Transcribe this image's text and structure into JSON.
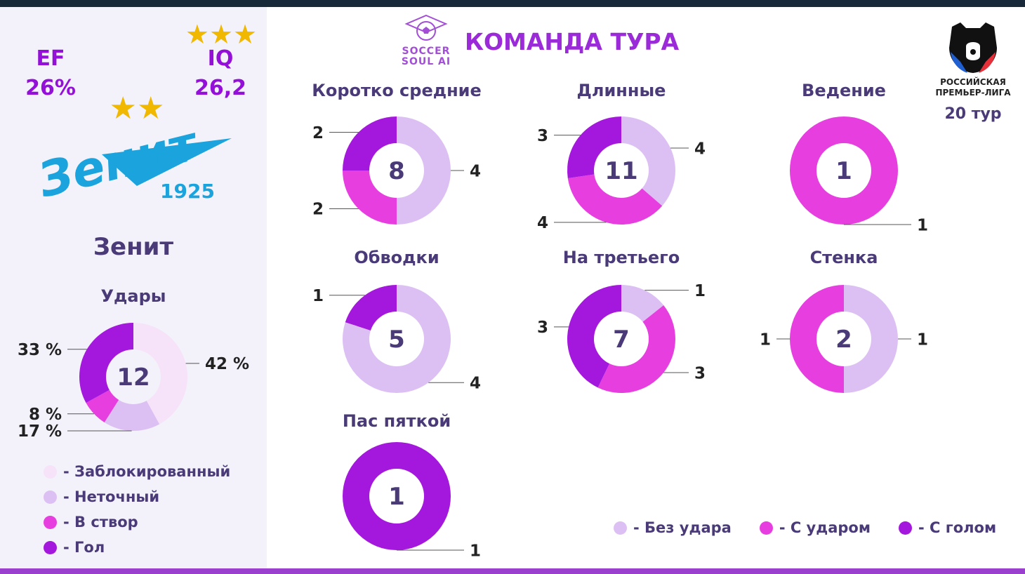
{
  "header": {
    "logo_text_line1": "SOCCER",
    "logo_text_line2": "SOUL AI",
    "title": "КОМАНДА ТУРА",
    "league_line1": "РОССИЙСКАЯ",
    "league_line2": "ПРЕМЬЕР-ЛИГА",
    "round": "20 тур"
  },
  "team": {
    "ef_label": "EF",
    "ef_value": "26%",
    "iq_label": "IQ",
    "iq_value": "26,2",
    "iq_stars": 3,
    "club_stars": 2,
    "logo_text": "Зенит",
    "logo_year": "1925",
    "name": "Зенит"
  },
  "colors": {
    "blocked": "#f6e2f9",
    "inaccurate": "#dcc0f3",
    "on_target": "#e73ee0",
    "goal": "#a417dd",
    "no_shot": "#dcc0f3",
    "with_shot": "#e73ee0",
    "with_goal": "#a417dd",
    "accent_purple": "#9b2ad8",
    "zenit_blue": "#1aa3dd",
    "star_gold": "#f0b800"
  },
  "chart_data": [
    {
      "type": "pie",
      "title": "Удары",
      "center_label": "12",
      "slices": [
        {
          "name": "Заблокированный",
          "value": 42,
          "label": "42 %",
          "color_key": "blocked"
        },
        {
          "name": "Неточный",
          "value": 17,
          "label": "17 %",
          "color_key": "inaccurate"
        },
        {
          "name": "В створ",
          "value": 8,
          "label": "8 %",
          "color_key": "on_target"
        },
        {
          "name": "Гол",
          "value": 33,
          "label": "33 %",
          "color_key": "goal"
        }
      ],
      "legend": [
        {
          "text": "- Заблокированный",
          "color_key": "blocked"
        },
        {
          "text": "- Неточный",
          "color_key": "inaccurate"
        },
        {
          "text": "- В створ",
          "color_key": "on_target"
        },
        {
          "text": "- Гол",
          "color_key": "goal"
        }
      ]
    },
    {
      "type": "pie",
      "title": "Коротко средние",
      "center_label": "8",
      "slices": [
        {
          "name": "Без удара",
          "value": 4,
          "label": "4",
          "color_key": "no_shot"
        },
        {
          "name": "С ударом",
          "value": 2,
          "label": "2",
          "color_key": "with_shot"
        },
        {
          "name": "С голом",
          "value": 2,
          "label": "2",
          "color_key": "with_goal"
        }
      ]
    },
    {
      "type": "pie",
      "title": "Длинные",
      "center_label": "11",
      "slices": [
        {
          "name": "Без удара",
          "value": 4,
          "label": "4",
          "color_key": "no_shot"
        },
        {
          "name": "С ударом",
          "value": 4,
          "label": "4",
          "color_key": "with_shot"
        },
        {
          "name": "С голом",
          "value": 3,
          "label": "3",
          "color_key": "with_goal"
        }
      ]
    },
    {
      "type": "pie",
      "title": "Ведение",
      "center_label": "1",
      "slices": [
        {
          "name": "С ударом",
          "value": 1,
          "label": "1",
          "color_key": "with_shot"
        }
      ]
    },
    {
      "type": "pie",
      "title": "Обводки",
      "center_label": "5",
      "slices": [
        {
          "name": "Без удара",
          "value": 4,
          "label": "4",
          "color_key": "no_shot"
        },
        {
          "name": "С голом",
          "value": 1,
          "label": "1",
          "color_key": "with_goal"
        }
      ]
    },
    {
      "type": "pie",
      "title": "На третьего",
      "center_label": "7",
      "slices": [
        {
          "name": "Без удара",
          "value": 1,
          "label": "1",
          "color_key": "no_shot"
        },
        {
          "name": "С ударом",
          "value": 3,
          "label": "3",
          "color_key": "with_shot"
        },
        {
          "name": "С голом",
          "value": 3,
          "label": "3",
          "color_key": "with_goal"
        }
      ]
    },
    {
      "type": "pie",
      "title": "Стенка",
      "center_label": "2",
      "slices": [
        {
          "name": "Без удара",
          "value": 1,
          "label": "1",
          "color_key": "no_shot"
        },
        {
          "name": "С ударом",
          "value": 1,
          "label": "1",
          "color_key": "with_shot"
        }
      ]
    },
    {
      "type": "pie",
      "title": "Пас пяткой",
      "center_label": "1",
      "slices": [
        {
          "name": "С голом",
          "value": 1,
          "label": "1",
          "color_key": "with_goal"
        }
      ]
    }
  ],
  "pass_legend": [
    {
      "text": "- Без удара",
      "color_key": "no_shot"
    },
    {
      "text": "- С ударом",
      "color_key": "with_shot"
    },
    {
      "text": "- С голом",
      "color_key": "with_goal"
    }
  ]
}
